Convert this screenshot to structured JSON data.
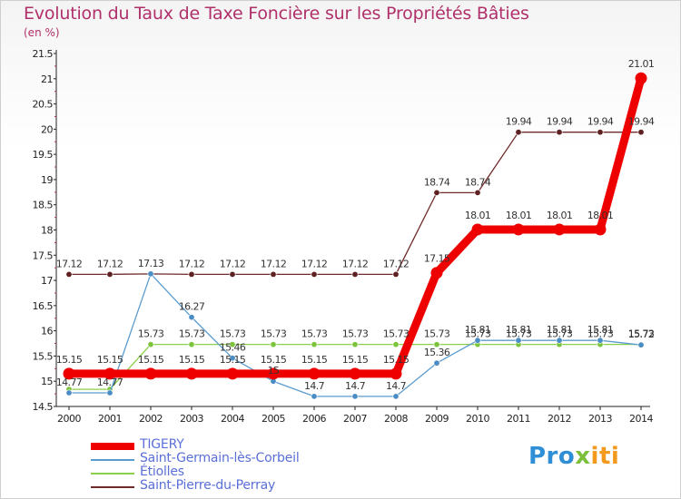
{
  "title": "Evolution du Taux de Taxe Foncière sur les Propriétés Bâties",
  "unit": "(en %)",
  "logo": {
    "text": "Proxiti",
    "parts": [
      "Pro",
      "x",
      "iti"
    ]
  },
  "chart_data": {
    "type": "line",
    "title": "Evolution du Taux de Taxe Foncière sur les Propriétés Bâties",
    "ylabel": "(en %)",
    "xlabel": "",
    "ylim": [
      14.5,
      21.5
    ],
    "yticks": [
      "14.5",
      "15",
      "15.5",
      "16",
      "16.5",
      "17",
      "17.5",
      "18",
      "18.5",
      "19",
      "19.5",
      "20",
      "20.5",
      "21",
      "21.5"
    ],
    "categories": [
      "2000",
      "2001",
      "2002",
      "2003",
      "2004",
      "2005",
      "2006",
      "2007",
      "2008",
      "2009",
      "2010",
      "2011",
      "2012",
      "2013",
      "2014"
    ],
    "grid": false,
    "legend_position": "bottom-left",
    "series": [
      {
        "name": "Saint-Pierre-du-Perray",
        "color": "#6e2a2a",
        "values": [
          17.12,
          17.12,
          17.13,
          17.12,
          17.12,
          17.12,
          17.12,
          17.12,
          17.12,
          18.74,
          18.74,
          19.94,
          19.94,
          19.94,
          19.94
        ],
        "labels": [
          "17.12",
          "17.12",
          "17.13",
          "17.12",
          "17.12",
          "17.12",
          "17.12",
          "17.12",
          "17.12",
          "18.74",
          "18.74",
          "19.94",
          "19.94",
          "19.94",
          "19.94"
        ]
      },
      {
        "name": "Étiolles",
        "color": "#8ad04a",
        "values": [
          14.84,
          14.84,
          15.73,
          15.73,
          15.73,
          15.73,
          15.73,
          15.73,
          15.73,
          15.73,
          15.73,
          15.73,
          15.73,
          15.73,
          15.73
        ],
        "labels": [
          "",
          "",
          "15.73",
          "15.73",
          "15.73",
          "15.73",
          "15.73",
          "15.73",
          "15.73",
          "15.73",
          "15.73",
          "15.73",
          "15.73",
          "15.73",
          "15.73"
        ]
      },
      {
        "name": "Saint-Germain-lès-Corbeil",
        "color": "#5b9ccf",
        "values": [
          14.77,
          14.77,
          17.13,
          16.27,
          15.46,
          15.0,
          14.7,
          14.7,
          14.7,
          15.36,
          15.81,
          15.81,
          15.81,
          15.81,
          15.72
        ],
        "labels": [
          "14.77",
          "14.77",
          "",
          "16.27",
          "15.46",
          "15",
          "14.7",
          "14.7",
          "14.7",
          "15.36",
          "15.81",
          "15.81",
          "15.81",
          "15.81",
          "15.72"
        ]
      },
      {
        "name": "TIGERY",
        "color": "#ee0000",
        "values": [
          15.15,
          15.15,
          15.15,
          15.15,
          15.15,
          15.15,
          15.15,
          15.15,
          15.15,
          17.15,
          18.01,
          18.01,
          18.01,
          18.01,
          21.01
        ],
        "labels": [
          "15.15",
          "15.15",
          "15.15",
          "15.15",
          "15.15",
          "15.15",
          "15.15",
          "15.15",
          "15.15",
          "17.15",
          "18.01",
          "18.01",
          "18.01",
          "18.01",
          "21.01"
        ]
      }
    ],
    "legend": [
      "TIGERY",
      "Saint-Germain-lès-Corbeil",
      "Étiolles",
      "Saint-Pierre-du-Perray"
    ]
  }
}
